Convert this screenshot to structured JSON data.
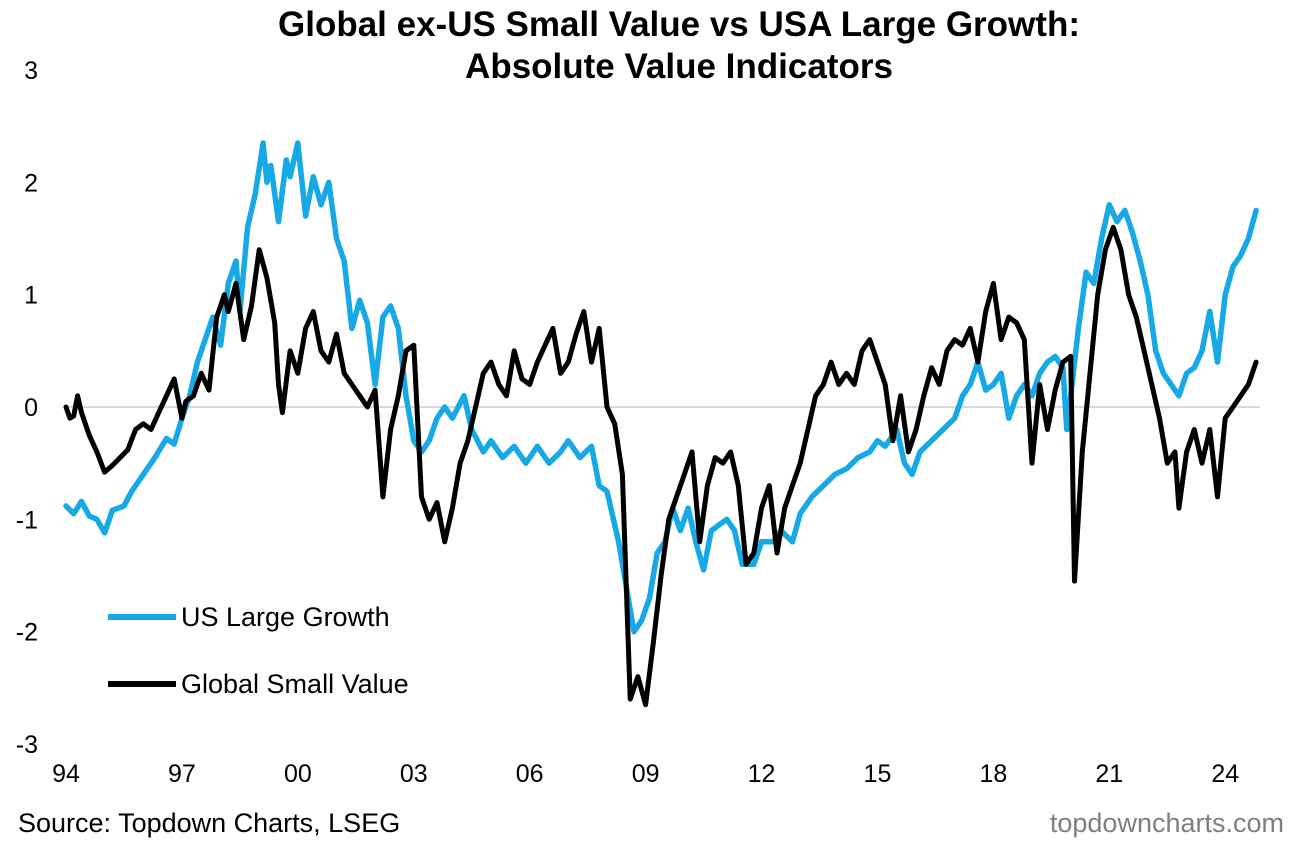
{
  "title": "Global ex-US Small Value vs USA Large Growth:\nAbsolute Value Indicators",
  "source": "Source: Topdown Charts, LSEG",
  "watermark": "topdowncharts.com",
  "colors": {
    "us_large_growth": "#17A8E6",
    "global_small_value": "#000000",
    "zero_line": "#d9d9d9"
  },
  "chart_data": {
    "type": "line",
    "title": "Global ex-US Small Value vs USA Large Growth: Absolute Value Indicators",
    "xlabel": "",
    "ylabel": "",
    "xlim": [
      1994.0,
      2024.9
    ],
    "ylim": [
      -3,
      3
    ],
    "x_ticks": [
      1994,
      1997,
      2000,
      2003,
      2006,
      2009,
      2012,
      2015,
      2018,
      2021,
      2024
    ],
    "x_tick_labels": [
      "94",
      "97",
      "00",
      "03",
      "06",
      "09",
      "12",
      "15",
      "18",
      "21",
      "24"
    ],
    "y_ticks": [
      3,
      2,
      1,
      0,
      -1,
      -2,
      -3
    ],
    "grid": false,
    "legend": "bottom-left",
    "series": [
      {
        "name": "US Large Growth",
        "color": "#17A8E6",
        "points": [
          [
            1994.0,
            -0.88
          ],
          [
            1994.2,
            -0.95
          ],
          [
            1994.4,
            -0.84
          ],
          [
            1994.6,
            -0.97
          ],
          [
            1994.8,
            -1.0
          ],
          [
            1995.0,
            -1.12
          ],
          [
            1995.2,
            -0.92
          ],
          [
            1995.5,
            -0.88
          ],
          [
            1995.7,
            -0.75
          ],
          [
            1996.0,
            -0.6
          ],
          [
            1996.3,
            -0.45
          ],
          [
            1996.6,
            -0.28
          ],
          [
            1996.8,
            -0.33
          ],
          [
            1997.0,
            -0.1
          ],
          [
            1997.2,
            0.1
          ],
          [
            1997.4,
            0.4
          ],
          [
            1997.6,
            0.6
          ],
          [
            1997.8,
            0.8
          ],
          [
            1998.0,
            0.55
          ],
          [
            1998.2,
            1.1
          ],
          [
            1998.4,
            1.3
          ],
          [
            1998.5,
            0.85
          ],
          [
            1998.7,
            1.6
          ],
          [
            1998.9,
            1.9
          ],
          [
            1999.1,
            2.35
          ],
          [
            1999.2,
            2.0
          ],
          [
            1999.3,
            2.15
          ],
          [
            1999.5,
            1.65
          ],
          [
            1999.7,
            2.2
          ],
          [
            1999.8,
            2.05
          ],
          [
            2000.0,
            2.35
          ],
          [
            2000.2,
            1.7
          ],
          [
            2000.4,
            2.05
          ],
          [
            2000.6,
            1.8
          ],
          [
            2000.8,
            2.0
          ],
          [
            2001.0,
            1.5
          ],
          [
            2001.2,
            1.3
          ],
          [
            2001.4,
            0.7
          ],
          [
            2001.6,
            0.95
          ],
          [
            2001.8,
            0.75
          ],
          [
            2002.0,
            0.2
          ],
          [
            2002.2,
            0.8
          ],
          [
            2002.4,
            0.9
          ],
          [
            2002.6,
            0.7
          ],
          [
            2002.8,
            0.1
          ],
          [
            2003.0,
            -0.3
          ],
          [
            2003.2,
            -0.4
          ],
          [
            2003.4,
            -0.3
          ],
          [
            2003.6,
            -0.1
          ],
          [
            2003.8,
            0.0
          ],
          [
            2004.0,
            -0.1
          ],
          [
            2004.3,
            0.1
          ],
          [
            2004.5,
            -0.2
          ],
          [
            2004.8,
            -0.4
          ],
          [
            2005.0,
            -0.3
          ],
          [
            2005.3,
            -0.45
          ],
          [
            2005.6,
            -0.35
          ],
          [
            2005.9,
            -0.5
          ],
          [
            2006.2,
            -0.35
          ],
          [
            2006.5,
            -0.5
          ],
          [
            2006.8,
            -0.4
          ],
          [
            2007.0,
            -0.3
          ],
          [
            2007.3,
            -0.45
          ],
          [
            2007.6,
            -0.35
          ],
          [
            2007.8,
            -0.7
          ],
          [
            2008.0,
            -0.75
          ],
          [
            2008.3,
            -1.2
          ],
          [
            2008.5,
            -1.6
          ],
          [
            2008.7,
            -2.0
          ],
          [
            2008.9,
            -1.9
          ],
          [
            2009.1,
            -1.7
          ],
          [
            2009.3,
            -1.3
          ],
          [
            2009.5,
            -1.2
          ],
          [
            2009.7,
            -0.9
          ],
          [
            2009.9,
            -1.1
          ],
          [
            2010.1,
            -0.9
          ],
          [
            2010.3,
            -1.2
          ],
          [
            2010.5,
            -1.45
          ],
          [
            2010.7,
            -1.1
          ],
          [
            2010.9,
            -1.05
          ],
          [
            2011.1,
            -1.0
          ],
          [
            2011.3,
            -1.1
          ],
          [
            2011.5,
            -1.4
          ],
          [
            2011.8,
            -1.4
          ],
          [
            2012.0,
            -1.2
          ],
          [
            2012.3,
            -1.2
          ],
          [
            2012.5,
            -1.1
          ],
          [
            2012.8,
            -1.2
          ],
          [
            2013.0,
            -0.95
          ],
          [
            2013.3,
            -0.8
          ],
          [
            2013.6,
            -0.7
          ],
          [
            2013.9,
            -0.6
          ],
          [
            2014.2,
            -0.55
          ],
          [
            2014.5,
            -0.45
          ],
          [
            2014.8,
            -0.4
          ],
          [
            2015.0,
            -0.3
          ],
          [
            2015.2,
            -0.35
          ],
          [
            2015.5,
            -0.2
          ],
          [
            2015.7,
            -0.5
          ],
          [
            2015.9,
            -0.6
          ],
          [
            2016.1,
            -0.4
          ],
          [
            2016.4,
            -0.3
          ],
          [
            2016.7,
            -0.2
          ],
          [
            2017.0,
            -0.1
          ],
          [
            2017.2,
            0.1
          ],
          [
            2017.4,
            0.2
          ],
          [
            2017.6,
            0.4
          ],
          [
            2017.8,
            0.15
          ],
          [
            2018.0,
            0.2
          ],
          [
            2018.2,
            0.3
          ],
          [
            2018.4,
            -0.1
          ],
          [
            2018.6,
            0.1
          ],
          [
            2018.8,
            0.2
          ],
          [
            2019.0,
            0.1
          ],
          [
            2019.2,
            0.3
          ],
          [
            2019.4,
            0.4
          ],
          [
            2019.6,
            0.45
          ],
          [
            2019.8,
            0.35
          ],
          [
            2019.9,
            -0.2
          ],
          [
            2020.0,
            0.1
          ],
          [
            2020.2,
            0.7
          ],
          [
            2020.4,
            1.2
          ],
          [
            2020.6,
            1.1
          ],
          [
            2020.8,
            1.5
          ],
          [
            2021.0,
            1.8
          ],
          [
            2021.2,
            1.65
          ],
          [
            2021.4,
            1.75
          ],
          [
            2021.6,
            1.55
          ],
          [
            2021.8,
            1.3
          ],
          [
            2022.0,
            1.0
          ],
          [
            2022.2,
            0.5
          ],
          [
            2022.4,
            0.3
          ],
          [
            2022.6,
            0.2
          ],
          [
            2022.8,
            0.1
          ],
          [
            2023.0,
            0.3
          ],
          [
            2023.2,
            0.35
          ],
          [
            2023.4,
            0.5
          ],
          [
            2023.6,
            0.85
          ],
          [
            2023.8,
            0.4
          ],
          [
            2024.0,
            1.0
          ],
          [
            2024.2,
            1.25
          ],
          [
            2024.4,
            1.35
          ],
          [
            2024.6,
            1.5
          ],
          [
            2024.8,
            1.75
          ]
        ]
      },
      {
        "name": "Global Small Value",
        "color": "#000000",
        "points": [
          [
            1994.0,
            0.0
          ],
          [
            1994.1,
            -0.1
          ],
          [
            1994.2,
            -0.08
          ],
          [
            1994.3,
            0.1
          ],
          [
            1994.4,
            -0.05
          ],
          [
            1994.6,
            -0.25
          ],
          [
            1994.8,
            -0.4
          ],
          [
            1995.0,
            -0.58
          ],
          [
            1995.2,
            -0.52
          ],
          [
            1995.4,
            -0.45
          ],
          [
            1995.6,
            -0.38
          ],
          [
            1995.8,
            -0.2
          ],
          [
            1996.0,
            -0.15
          ],
          [
            1996.2,
            -0.2
          ],
          [
            1996.4,
            -0.05
          ],
          [
            1996.6,
            0.1
          ],
          [
            1996.8,
            0.25
          ],
          [
            1997.0,
            -0.1
          ],
          [
            1997.1,
            0.05
          ],
          [
            1997.3,
            0.1
          ],
          [
            1997.5,
            0.3
          ],
          [
            1997.7,
            0.15
          ],
          [
            1997.9,
            0.8
          ],
          [
            1998.1,
            1.0
          ],
          [
            1998.2,
            0.85
          ],
          [
            1998.4,
            1.1
          ],
          [
            1998.6,
            0.6
          ],
          [
            1998.8,
            0.9
          ],
          [
            1999.0,
            1.4
          ],
          [
            1999.2,
            1.15
          ],
          [
            1999.4,
            0.75
          ],
          [
            1999.5,
            0.2
          ],
          [
            1999.6,
            -0.05
          ],
          [
            1999.8,
            0.5
          ],
          [
            2000.0,
            0.3
          ],
          [
            2000.2,
            0.7
          ],
          [
            2000.4,
            0.85
          ],
          [
            2000.6,
            0.5
          ],
          [
            2000.8,
            0.4
          ],
          [
            2001.0,
            0.65
          ],
          [
            2001.2,
            0.3
          ],
          [
            2001.4,
            0.2
          ],
          [
            2001.6,
            0.1
          ],
          [
            2001.8,
            0.0
          ],
          [
            2002.0,
            0.15
          ],
          [
            2002.2,
            -0.8
          ],
          [
            2002.4,
            -0.2
          ],
          [
            2002.6,
            0.1
          ],
          [
            2002.8,
            0.5
          ],
          [
            2003.0,
            0.55
          ],
          [
            2003.2,
            -0.8
          ],
          [
            2003.4,
            -1.0
          ],
          [
            2003.6,
            -0.85
          ],
          [
            2003.8,
            -1.2
          ],
          [
            2004.0,
            -0.9
          ],
          [
            2004.2,
            -0.5
          ],
          [
            2004.4,
            -0.3
          ],
          [
            2004.6,
            0.0
          ],
          [
            2004.8,
            0.3
          ],
          [
            2005.0,
            0.4
          ],
          [
            2005.2,
            0.2
          ],
          [
            2005.4,
            0.1
          ],
          [
            2005.6,
            0.5
          ],
          [
            2005.8,
            0.25
          ],
          [
            2006.0,
            0.2
          ],
          [
            2006.2,
            0.4
          ],
          [
            2006.4,
            0.55
          ],
          [
            2006.6,
            0.7
          ],
          [
            2006.8,
            0.3
          ],
          [
            2007.0,
            0.4
          ],
          [
            2007.2,
            0.65
          ],
          [
            2007.4,
            0.85
          ],
          [
            2007.6,
            0.4
          ],
          [
            2007.8,
            0.7
          ],
          [
            2008.0,
            0.0
          ],
          [
            2008.2,
            -0.15
          ],
          [
            2008.4,
            -0.6
          ],
          [
            2008.6,
            -2.6
          ],
          [
            2008.8,
            -2.4
          ],
          [
            2009.0,
            -2.65
          ],
          [
            2009.2,
            -2.1
          ],
          [
            2009.4,
            -1.5
          ],
          [
            2009.6,
            -1.0
          ],
          [
            2009.8,
            -0.8
          ],
          [
            2010.0,
            -0.6
          ],
          [
            2010.2,
            -0.4
          ],
          [
            2010.4,
            -1.2
          ],
          [
            2010.6,
            -0.7
          ],
          [
            2010.8,
            -0.45
          ],
          [
            2011.0,
            -0.5
          ],
          [
            2011.2,
            -0.4
          ],
          [
            2011.4,
            -0.7
          ],
          [
            2011.6,
            -1.4
          ],
          [
            2011.8,
            -1.3
          ],
          [
            2012.0,
            -0.9
          ],
          [
            2012.2,
            -0.7
          ],
          [
            2012.4,
            -1.3
          ],
          [
            2012.6,
            -0.9
          ],
          [
            2012.8,
            -0.7
          ],
          [
            2013.0,
            -0.5
          ],
          [
            2013.2,
            -0.2
          ],
          [
            2013.4,
            0.1
          ],
          [
            2013.6,
            0.2
          ],
          [
            2013.8,
            0.4
          ],
          [
            2014.0,
            0.2
          ],
          [
            2014.2,
            0.3
          ],
          [
            2014.4,
            0.2
          ],
          [
            2014.6,
            0.5
          ],
          [
            2014.8,
            0.6
          ],
          [
            2015.0,
            0.4
          ],
          [
            2015.2,
            0.2
          ],
          [
            2015.4,
            -0.3
          ],
          [
            2015.6,
            0.1
          ],
          [
            2015.8,
            -0.4
          ],
          [
            2016.0,
            -0.2
          ],
          [
            2016.2,
            0.1
          ],
          [
            2016.4,
            0.35
          ],
          [
            2016.6,
            0.2
          ],
          [
            2016.8,
            0.5
          ],
          [
            2017.0,
            0.6
          ],
          [
            2017.2,
            0.55
          ],
          [
            2017.4,
            0.7
          ],
          [
            2017.6,
            0.4
          ],
          [
            2017.8,
            0.85
          ],
          [
            2018.0,
            1.1
          ],
          [
            2018.2,
            0.6
          ],
          [
            2018.4,
            0.8
          ],
          [
            2018.6,
            0.75
          ],
          [
            2018.8,
            0.6
          ],
          [
            2019.0,
            -0.5
          ],
          [
            2019.2,
            0.2
          ],
          [
            2019.4,
            -0.2
          ],
          [
            2019.6,
            0.15
          ],
          [
            2019.8,
            0.4
          ],
          [
            2020.0,
            0.45
          ],
          [
            2020.1,
            -1.55
          ],
          [
            2020.3,
            -0.4
          ],
          [
            2020.5,
            0.3
          ],
          [
            2020.7,
            1.0
          ],
          [
            2020.9,
            1.4
          ],
          [
            2021.1,
            1.6
          ],
          [
            2021.3,
            1.4
          ],
          [
            2021.5,
            1.0
          ],
          [
            2021.7,
            0.8
          ],
          [
            2021.9,
            0.5
          ],
          [
            2022.1,
            0.2
          ],
          [
            2022.3,
            -0.1
          ],
          [
            2022.5,
            -0.5
          ],
          [
            2022.7,
            -0.4
          ],
          [
            2022.8,
            -0.9
          ],
          [
            2023.0,
            -0.4
          ],
          [
            2023.2,
            -0.2
          ],
          [
            2023.4,
            -0.5
          ],
          [
            2023.6,
            -0.2
          ],
          [
            2023.8,
            -0.8
          ],
          [
            2024.0,
            -0.1
          ],
          [
            2024.2,
            0.0
          ],
          [
            2024.4,
            0.1
          ],
          [
            2024.6,
            0.2
          ],
          [
            2024.8,
            0.4
          ]
        ]
      }
    ]
  }
}
